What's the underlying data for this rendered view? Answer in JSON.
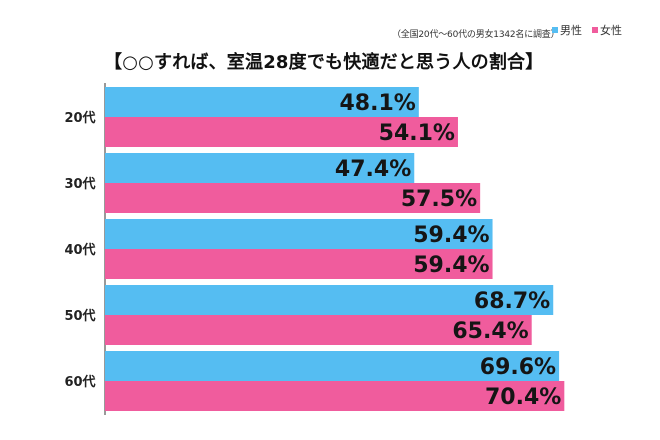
{
  "note": "（全国20代～60代の男女1342名に調査）",
  "title": "【○○すれば、室温28度でも快適だと思う人の割合】",
  "colors": {
    "male": "#55bdf2",
    "female": "#f05c9d",
    "axis": "#333333",
    "label": "#222222"
  },
  "chart_data": {
    "type": "bar",
    "orientation": "horizontal",
    "categories": [
      "20代",
      "30代",
      "40代",
      "50代",
      "60代"
    ],
    "series": [
      {
        "name": "男性",
        "values": [
          48.1,
          47.4,
          59.4,
          68.7,
          69.6
        ],
        "labels": [
          "48.1%",
          "47.4%",
          "59.4%",
          "68.7%",
          "69.6%"
        ]
      },
      {
        "name": "女性",
        "values": [
          54.1,
          57.5,
          59.4,
          65.4,
          70.4
        ],
        "labels": [
          "54.1%",
          "57.5%",
          "59.4%",
          "65.4%",
          "70.4%"
        ]
      }
    ],
    "title": "【○○すれば、室温28度でも快適だと思う人の割合】",
    "xlim": [
      0,
      82
    ],
    "grid": false,
    "legend_position": "top-right"
  }
}
